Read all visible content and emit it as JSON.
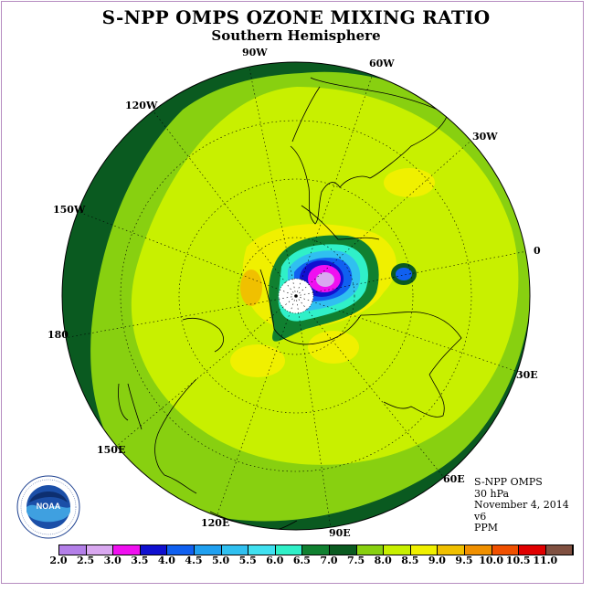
{
  "header": {
    "title": "S-NPP OMPS OZONE MIXING RATIO",
    "subtitle": "Southern Hemisphere"
  },
  "longitude_labels": [
    "90W",
    "60W",
    "30W",
    "0",
    "30E",
    "60E",
    "90E",
    "120E",
    "150E",
    "180",
    "150W",
    "120W"
  ],
  "info": {
    "instrument": "S-NPP OMPS",
    "level": "30 hPa",
    "date": "November 4, 2014",
    "version": "v6",
    "units": "PPM"
  },
  "logo": {
    "name": "NOAA",
    "text": "NOAA"
  },
  "colorbar": {
    "ticks": [
      "2.0",
      "2.5",
      "3.0",
      "3.5",
      "4.0",
      "4.5",
      "5.0",
      "5.5",
      "6.0",
      "6.5",
      "7.0",
      "7.5",
      "8.0",
      "8.5",
      "9.0",
      "9.5",
      "10.0",
      "10.5",
      "11.0"
    ],
    "colors": [
      "#b37fe8",
      "#d9a8f0",
      "#f010f0",
      "#1010d0",
      "#1060f0",
      "#20a0f0",
      "#30c0f0",
      "#40e0f0",
      "#30f0c8",
      "#108030",
      "#0a5a20",
      "#88d010",
      "#c8f000",
      "#f0f000",
      "#f0c000",
      "#f09000",
      "#f05000",
      "#e00000",
      "#805040"
    ]
  }
}
